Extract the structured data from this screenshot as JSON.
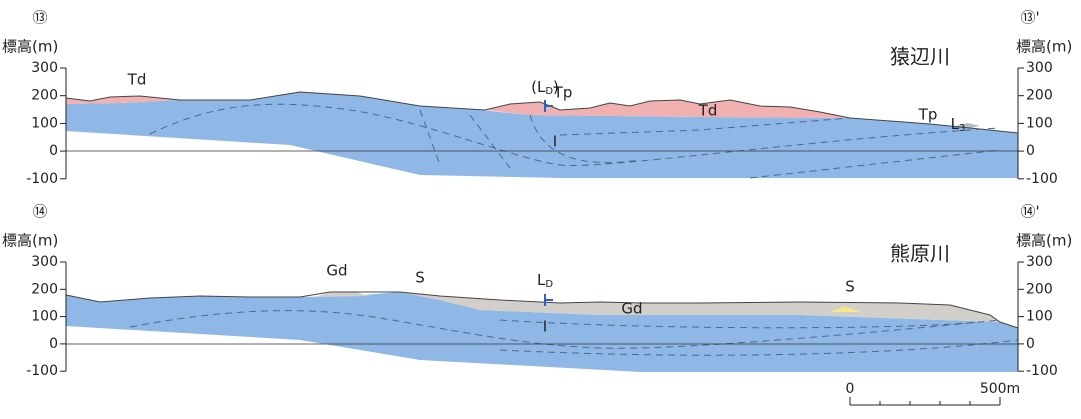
{
  "sections": [
    {
      "id_left": "⑬",
      "id_right": "⑬'",
      "axis_label_left": "標高(m)",
      "axis_label_right": "標高(m)",
      "river": "猿辺川",
      "ticks": [
        "300",
        "200",
        "100",
        "0",
        "-100"
      ],
      "labels": [
        "Td",
        "Tp",
        "Td",
        "I",
        "Tp"
      ],
      "marker": {
        "prefix": "(L",
        "subscript": "D",
        "suffix": ")"
      },
      "marker2": {
        "main": "L",
        "subscript": "3"
      }
    },
    {
      "id_left": "⑭",
      "id_right": "⑭'",
      "axis_label_left": "標高(m)",
      "axis_label_right": "標高(m)",
      "river": "熊原川",
      "ticks": [
        "300",
        "200",
        "100",
        "0",
        "-100"
      ],
      "labels": [
        "Gd",
        "S",
        "Gd",
        "I",
        "S"
      ],
      "marker": {
        "prefix": "L",
        "subscript": "D",
        "suffix": ""
      }
    }
  ],
  "scale_bar": {
    "start": "0",
    "end": "500m"
  }
}
